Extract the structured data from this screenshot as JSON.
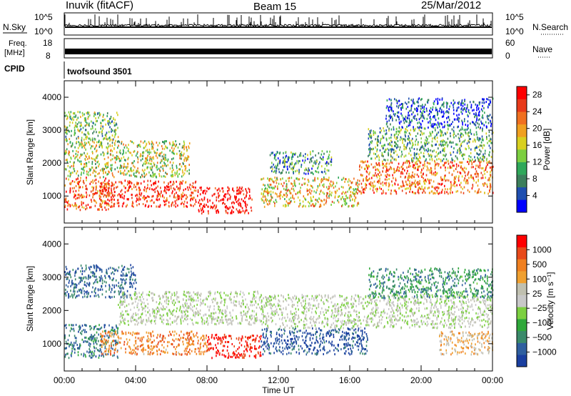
{
  "header": {
    "station": "Inuvik (fitACF)",
    "beam": "Beam 15",
    "date": "25/Mar/2012"
  },
  "status_panels": {
    "nsky": {
      "label": "N.Sky",
      "tick_top": "10^5",
      "tick_bottom": "10^0"
    },
    "nsearch": {
      "label": "N.Search",
      "tick_top": "10^5",
      "tick_bottom": "10^0"
    },
    "freq": {
      "label_line1": "Freq.",
      "label_line2": "[MHz]",
      "tick_top": "18",
      "tick_bottom": "8"
    },
    "nave": {
      "label": "Nave",
      "tick_top": "60",
      "tick_bottom": "0"
    },
    "cpid": {
      "label": "CPID",
      "value": "twofsound 3501"
    }
  },
  "chart_data": [
    {
      "type": "heatmap",
      "title": "",
      "ylabel": "Slant Range [km]",
      "xlabel": "Time UT",
      "ylim": [
        180,
        4500
      ],
      "xlim": [
        0,
        24
      ],
      "y_ticks": [
        "1000",
        "2000",
        "3000",
        "4000"
      ],
      "x_ticks": [
        "00:00",
        "04:00",
        "08:00",
        "12:00",
        "16:00",
        "20:00",
        "00:00"
      ],
      "colorbar": {
        "label": "Power [dB]",
        "ticks": [
          "4",
          "8",
          "12",
          "16",
          "20",
          "24",
          "28"
        ],
        "colors": [
          "#0000ff",
          "#1f4fb0",
          "#3c7f5c",
          "#2fa85a",
          "#7ccf40",
          "#d8d020",
          "#f0a020",
          "#f07020",
          "#e83a1a",
          "#ff0000"
        ],
        "range": [
          0,
          30
        ]
      },
      "scatter_regions": [
        {
          "t0": 0.0,
          "t1": 2.5,
          "r0": 600,
          "r1": 1600,
          "level": 0.8
        },
        {
          "t0": 2.0,
          "t1": 7.5,
          "r0": 700,
          "r1": 1500,
          "level": 0.9
        },
        {
          "t0": 7.5,
          "t1": 10.5,
          "r0": 500,
          "r1": 1300,
          "level": 1.0
        },
        {
          "t0": 0.0,
          "t1": 7.0,
          "r0": 1600,
          "r1": 2700,
          "level": 0.5
        },
        {
          "t0": 0.0,
          "t1": 3.0,
          "r0": 2700,
          "r1": 3600,
          "level": 0.4
        },
        {
          "t0": 11.0,
          "t1": 16.5,
          "r0": 700,
          "r1": 1600,
          "level": 0.6
        },
        {
          "t0": 11.5,
          "t1": 15.0,
          "r0": 1700,
          "r1": 2400,
          "level": 0.3
        },
        {
          "t0": 16.5,
          "t1": 24.0,
          "r0": 1100,
          "r1": 2100,
          "level": 0.75
        },
        {
          "t0": 17.0,
          "t1": 24.0,
          "r0": 2100,
          "r1": 3100,
          "level": 0.35
        },
        {
          "t0": 18.0,
          "t1": 24.0,
          "r0": 3100,
          "r1": 4000,
          "level": 0.15
        }
      ]
    },
    {
      "type": "heatmap",
      "title": "",
      "ylabel": "Slant Range [km]",
      "xlabel": "Time UT",
      "ylim": [
        180,
        4500
      ],
      "xlim": [
        0,
        24
      ],
      "y_ticks": [
        "1000",
        "2000",
        "3000",
        "4000"
      ],
      "x_ticks": [
        "00:00",
        "04:00",
        "08:00",
        "12:00",
        "16:00",
        "20:00",
        "00:00"
      ],
      "colorbar": {
        "label": "Velocity [m s⁻¹]",
        "ticks": [
          "1000",
          "500",
          "100",
          "25",
          "−25",
          "−100",
          "−500",
          "−1000"
        ],
        "colors": [
          "#1a3fa0",
          "#2f5f9f",
          "#3a8a6a",
          "#2fa83a",
          "#7cd040",
          "#c8c8c8",
          "#c0c0b0",
          "#f0a030",
          "#f08020",
          "#e84a1a",
          "#ff0000"
        ],
        "range": [
          -1000,
          1000
        ]
      },
      "scatter_regions": [
        {
          "t0": 0.0,
          "t1": 3.0,
          "r0": 600,
          "r1": 1600,
          "level": -0.6
        },
        {
          "t0": 2.0,
          "t1": 8.0,
          "r0": 700,
          "r1": 1400,
          "level": 0.5
        },
        {
          "t0": 8.0,
          "t1": 11.0,
          "r0": 600,
          "r1": 1300,
          "level": 0.9
        },
        {
          "t0": 0.0,
          "t1": 4.0,
          "r0": 2400,
          "r1": 3400,
          "level": -0.7
        },
        {
          "t0": 3.0,
          "t1": 11.0,
          "r0": 1600,
          "r1": 2600,
          "level": 0.0
        },
        {
          "t0": 11.0,
          "t1": 17.0,
          "r0": 700,
          "r1": 1500,
          "level": -0.8
        },
        {
          "t0": 11.0,
          "t1": 24.0,
          "r0": 1500,
          "r1": 2500,
          "level": 0.0
        },
        {
          "t0": 17.0,
          "t1": 24.0,
          "r0": 2400,
          "r1": 3300,
          "level": -0.5
        },
        {
          "t0": 21.0,
          "t1": 24.0,
          "r0": 700,
          "r1": 1400,
          "level": 0.3
        }
      ]
    }
  ]
}
